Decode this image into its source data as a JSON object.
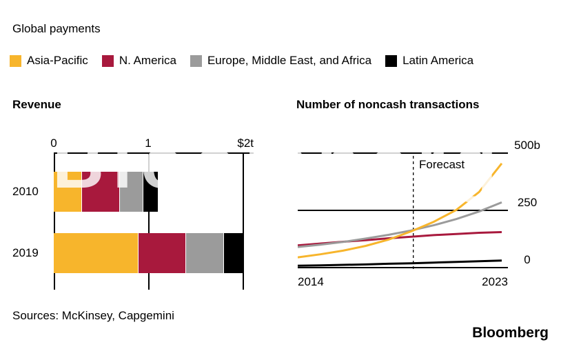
{
  "header": {
    "title": "Global payments"
  },
  "legend": {
    "items": [
      {
        "label": "Asia-Pacific",
        "color": "#F7B52C"
      },
      {
        "label": "N. America",
        "color": "#A8193D"
      },
      {
        "label": "Europe, Middle East, and Africa",
        "color": "#9B9B9B"
      },
      {
        "label": "Latin America",
        "color": "#000000"
      }
    ]
  },
  "watermark": "Bloomberg",
  "footer": {
    "sources": "Sources: McKinsey, Capgemini",
    "brand": "Bloomberg"
  },
  "chart_data": [
    {
      "type": "bar",
      "title": "Revenue",
      "orientation": "horizontal",
      "unit": "trillion USD",
      "categories": [
        "2010",
        "2019"
      ],
      "series": [
        {
          "name": "Asia-Pacific",
          "color": "#F7B52C",
          "values": [
            0.3,
            0.9
          ]
        },
        {
          "name": "N. America",
          "color": "#A8193D",
          "values": [
            0.4,
            0.5
          ]
        },
        {
          "name": "Europe, Middle East, and Africa",
          "color": "#9B9B9B",
          "values": [
            0.25,
            0.4
          ]
        },
        {
          "name": "Latin America",
          "color": "#000000",
          "values": [
            0.15,
            0.2
          ]
        }
      ],
      "totals": [
        1.1,
        2.0
      ],
      "xlim": [
        0,
        2
      ],
      "x_ticks": [
        "0",
        "1",
        "$2t"
      ],
      "grid": "vertical"
    },
    {
      "type": "line",
      "title": "Number of noncash transactions",
      "unit": "billions of transactions",
      "x": [
        2014,
        2015,
        2016,
        2017,
        2018,
        2019,
        2020,
        2021,
        2022,
        2023
      ],
      "series": [
        {
          "name": "Asia-Pacific",
          "color": "#F7B52C",
          "values": [
            45,
            58,
            74,
            95,
            122,
            158,
            200,
            252,
            330,
            455
          ]
        },
        {
          "name": "N. America",
          "color": "#A8193D",
          "values": [
            97,
            105,
            113,
            120,
            128,
            135,
            142,
            147,
            152,
            155
          ]
        },
        {
          "name": "Europe, Middle East, and Africa",
          "color": "#9B9B9B",
          "values": [
            90,
            100,
            112,
            127,
            143,
            162,
            185,
            212,
            245,
            285
          ]
        },
        {
          "name": "Latin America",
          "color": "#000000",
          "values": [
            8,
            10,
            12,
            14,
            17,
            19,
            22,
            25,
            28,
            31
          ]
        }
      ],
      "ylim": [
        0,
        500
      ],
      "y_ticks": [
        "500b",
        "250",
        "0"
      ],
      "x_ticks": [
        "2014",
        "2023"
      ],
      "forecast_x": 2019.1,
      "forecast_label": "Forecast",
      "grid": "horizontal",
      "legend_position": "top-shared"
    }
  ]
}
